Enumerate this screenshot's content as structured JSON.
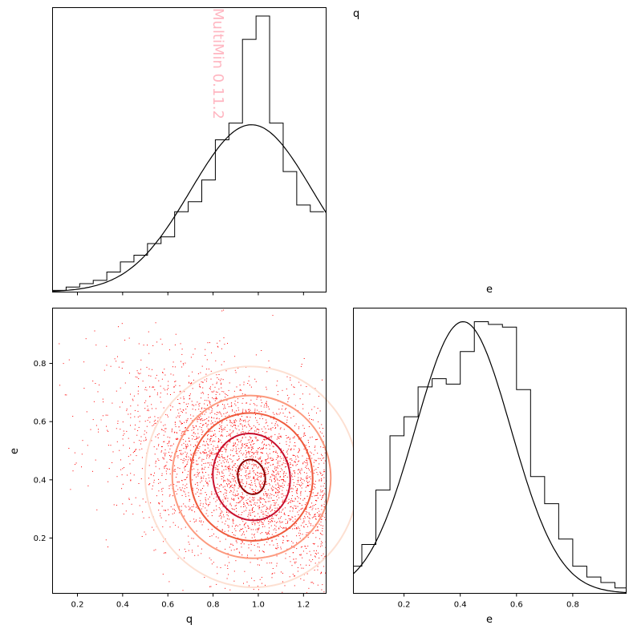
{
  "watermark": "MultiMin 0.11.2",
  "labels": {
    "q_title": "q",
    "e_title": "e",
    "q_xlabel": "q",
    "e_ylabel": "e",
    "e_xlabel": "e"
  },
  "chart_data": [
    {
      "type": "histogram",
      "panel": "q-marginal",
      "xlim": [
        0.09,
        1.3
      ],
      "bin_edges": [
        0.09,
        0.15,
        0.21,
        0.27,
        0.33,
        0.39,
        0.45,
        0.51,
        0.57,
        0.63,
        0.69,
        0.75,
        0.81,
        0.87,
        0.93,
        0.99,
        1.05,
        1.11,
        1.17,
        1.23,
        1.29
      ],
      "values": [
        0.01,
        0.03,
        0.05,
        0.07,
        0.12,
        0.18,
        0.22,
        0.29,
        0.33,
        0.48,
        0.54,
        0.67,
        0.91,
        1.01,
        1.51,
        1.65,
        1.01,
        0.72,
        0.52,
        0.48
      ],
      "curve": {
        "type": "gaussian",
        "mean": 0.97,
        "sd": 0.27,
        "peak": 1.0
      }
    },
    {
      "type": "histogram",
      "panel": "e-marginal",
      "xlim": [
        0.02,
        0.99
      ],
      "xticks": [
        0.2,
        0.4,
        0.6,
        0.8
      ],
      "bin_edges": [
        0.0,
        0.05,
        0.1,
        0.15,
        0.2,
        0.25,
        0.3,
        0.35,
        0.4,
        0.45,
        0.5,
        0.55,
        0.6,
        0.65,
        0.7,
        0.75,
        0.8,
        0.85,
        0.9,
        0.95,
        1.0
      ],
      "values": [
        0.1,
        0.18,
        0.38,
        0.58,
        0.65,
        0.76,
        0.79,
        0.77,
        0.89,
        1.0,
        0.99,
        0.98,
        0.75,
        0.43,
        0.33,
        0.2,
        0.1,
        0.06,
        0.04,
        0.02
      ],
      "curve": {
        "type": "gaussian",
        "mean": 0.41,
        "sd": 0.17,
        "peak": 1.0
      }
    },
    {
      "type": "scatter",
      "panel": "q-e-joint",
      "xlabel": "q",
      "ylabel": "e",
      "xlim": [
        0.09,
        1.3
      ],
      "ylim": [
        0.01,
        0.99
      ],
      "xticks": [
        0.2,
        0.4,
        0.6,
        0.8,
        1.0,
        1.2
      ],
      "yticks": [
        0.2,
        0.4,
        0.6,
        0.8
      ],
      "point_color": "#ff0000",
      "density": {
        "center": [
          0.96,
          0.42
        ],
        "sd": [
          0.28,
          0.18
        ],
        "corr": -0.45
      },
      "contours": {
        "center": [
          0.97,
          0.41
        ],
        "radii_q": [
          0.06,
          0.17,
          0.27,
          0.35,
          0.47
        ],
        "radii_e": [
          0.06,
          0.15,
          0.22,
          0.28,
          0.38
        ],
        "colors": [
          "#8b0000",
          "#c8102e",
          "#ef5a3c",
          "#fc9a7e",
          "#fde0d2"
        ]
      }
    }
  ]
}
